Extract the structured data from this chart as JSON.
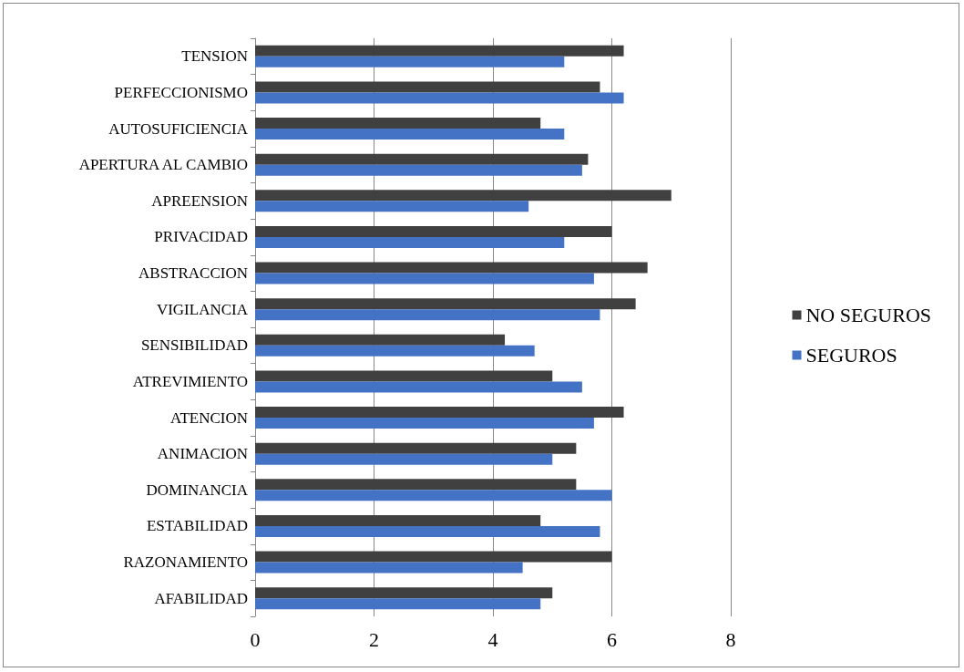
{
  "chart_data": {
    "type": "bar",
    "orientation": "horizontal",
    "categories": [
      "TENSION",
      "PERFECCIONISMO",
      "AUTOSUFICIENCIA",
      "APERTURA AL CAMBIO",
      "APREENSION",
      "PRIVACIDAD",
      "ABSTRACCION",
      "VIGILANCIA",
      "SENSIBILIDAD",
      "ATREVIMIENTO",
      "ATENCION",
      "ANIMACION",
      "DOMINANCIA",
      "ESTABILIDAD",
      "RAZONAMIENTO",
      "AFABILIDAD"
    ],
    "series": [
      {
        "name": "NO SEGUROS",
        "color": "#404040",
        "values": [
          6.2,
          5.8,
          4.8,
          5.6,
          7.0,
          6.0,
          6.6,
          6.4,
          4.2,
          5.0,
          6.2,
          5.4,
          5.4,
          4.8,
          6.0,
          5.0
        ]
      },
      {
        "name": "SEGUROS",
        "color": "#4472c4",
        "values": [
          5.2,
          6.2,
          5.2,
          5.5,
          4.6,
          5.2,
          5.7,
          5.8,
          4.7,
          5.5,
          5.7,
          5.0,
          6.0,
          5.8,
          4.5,
          4.8
        ]
      }
    ],
    "xlim": [
      0,
      8
    ],
    "xticks": [
      0,
      2,
      4,
      6,
      8
    ],
    "grid": "x",
    "legend": "right"
  }
}
